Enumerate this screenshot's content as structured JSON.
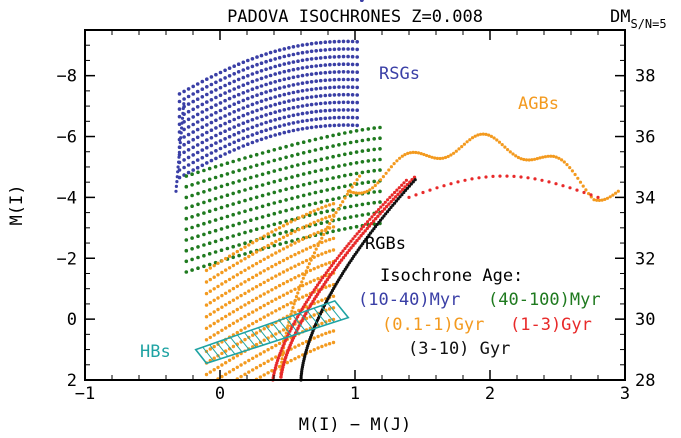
{
  "chart_data": {
    "type": "scatter",
    "title": "PADOVA ISOCHRONES Z=0.008",
    "xlabel": "M(I) − M(J)",
    "ylabel": "M(I)",
    "right_axis_label": "DM",
    "right_axis_label_sub": "S/N=5",
    "xlim": [
      -1,
      3
    ],
    "ylim": [
      2,
      -9.5
    ],
    "right_ylim": [
      28,
      39.5
    ],
    "x_ticks": [
      -1,
      0,
      1,
      2,
      3
    ],
    "y_ticks": [
      2,
      0,
      -2,
      -4,
      -6,
      -8
    ],
    "right_ticks": [
      28,
      30,
      32,
      34,
      36,
      38
    ],
    "grid": false,
    "legend_title": "Isochrone Age:",
    "series": [
      {
        "name": "(10-40)Myr",
        "color": "#3a3fa6",
        "band": [
          -9.1,
          -6.0
        ]
      },
      {
        "name": "(40-100)Myr",
        "color": "#1f7a1f",
        "band": [
          -6.3,
          -2.5
        ]
      },
      {
        "name": "(0.1-1)Gyr",
        "color": "#f39a1f",
        "band": [
          -3.8,
          1.9
        ]
      },
      {
        "name": "(1-3)Gyr",
        "color": "#e82a2a",
        "band": [
          -4.7,
          1.9
        ]
      },
      {
        "name": "(3-10) Gyr",
        "color": "#111111",
        "band": [
          -4.6,
          2.0
        ]
      }
    ],
    "annotations": {
      "rsg": {
        "text": "RSGs",
        "color": "#3a3fa6"
      },
      "agb": {
        "text": "AGBs",
        "color": "#f39a1f"
      },
      "rgb": {
        "text": "RGBs",
        "color": "#000000"
      },
      "hb": {
        "text": "HBs",
        "color": "#1fa3a3"
      }
    }
  }
}
